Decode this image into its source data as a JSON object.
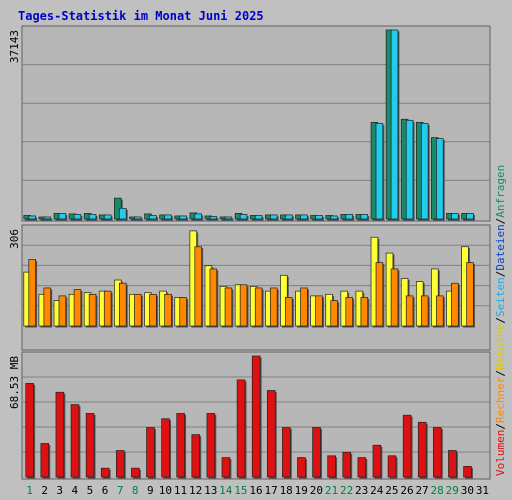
{
  "title": "Tages-Statistik im Monat Juni 2025",
  "colors": {
    "background": "#c0c0c0",
    "plot_bg": "#b7b7b7",
    "grid": "#808080",
    "title": "#0000cc",
    "anfragen": "#1a8a6a",
    "dateien": "#22ccee",
    "seiten": "#22aadd",
    "besuche": "#ffff33",
    "rechner": "#ff8800",
    "volumen": "#dd1111",
    "weekday_label": "#000000",
    "weekend_label": "#008040"
  },
  "right_legend": [
    {
      "text": "Volumen",
      "color": "#dd1111"
    },
    {
      "text": "/",
      "color": "#000000"
    },
    {
      "text": "Rechner",
      "color": "#ff8800"
    },
    {
      "text": "/",
      "color": "#000000"
    },
    {
      "text": "Besuche",
      "color": "#e0c800"
    },
    {
      "text": "/",
      "color": "#000000"
    },
    {
      "text": "Seiten",
      "color": "#22aadd"
    },
    {
      "text": "/",
      "color": "#000000"
    },
    {
      "text": "Dateien",
      "color": "#0044cc"
    },
    {
      "text": "/",
      "color": "#000000"
    },
    {
      "text": "Anfragen",
      "color": "#1a8a6a"
    }
  ],
  "chart_data": {
    "type": "bar",
    "days": [
      "1",
      "2",
      "3",
      "4",
      "5",
      "6",
      "7",
      "8",
      "9",
      "10",
      "11",
      "12",
      "13",
      "14",
      "15",
      "16",
      "17",
      "18",
      "19",
      "20",
      "21",
      "22",
      "23",
      "24",
      "25",
      "26",
      "27",
      "28",
      "29",
      "30",
      "31"
    ],
    "weekend_days": [
      "1",
      "7",
      "8",
      "14",
      "15",
      "21",
      "22",
      "28",
      "29"
    ],
    "panels": [
      {
        "ylabel": "37143",
        "ymax": 37143,
        "series": [
          {
            "name": "Anfragen",
            "values": [
              700,
              400,
              1100,
              1000,
              1100,
              800,
              4100,
              400,
              1000,
              800,
              600,
              1200,
              600,
              400,
              1100,
              700,
              800,
              800,
              800,
              700,
              700,
              900,
              900,
              19000,
              37143,
              19600,
              19000,
              16000,
              1100,
              1100,
              null
            ]
          },
          {
            "name": "Dateien",
            "values": [
              600,
              400,
              1100,
              900,
              900,
              800,
              2100,
              400,
              700,
              800,
              600,
              1000,
              500,
              400,
              900,
              700,
              800,
              800,
              800,
              700,
              600,
              900,
              900,
              18800,
              37143,
              19400,
              18800,
              15800,
              1100,
              1100,
              null
            ]
          }
        ]
      },
      {
        "ylabel": "306",
        "ymax": 306,
        "series": [
          {
            "name": "Besuche",
            "values": [
              170,
              100,
              80,
              100,
              105,
              110,
              145,
              100,
              105,
              110,
              90,
              300,
              190,
              125,
              130,
              125,
              110,
              160,
              110,
              95,
              100,
              110,
              110,
              280,
              230,
              150,
              140,
              180,
              110,
              250,
              null
            ]
          },
          {
            "name": "Rechner",
            "values": [
              210,
              120,
              95,
              115,
              100,
              110,
              135,
              100,
              100,
              100,
              90,
              250,
              180,
              120,
              130,
              120,
              120,
              90,
              120,
              95,
              80,
              90,
              90,
              200,
              180,
              95,
              95,
              95,
              135,
              200,
              null
            ]
          }
        ]
      },
      {
        "ylabel": "68.53 MB",
        "ymax": 68.53,
        "series": [
          {
            "name": "Volumen",
            "values": [
              53,
              19,
              48,
              41,
              36,
              5,
              15,
              5,
              28,
              33,
              36,
              24,
              36,
              11,
              55,
              68.53,
              49,
              28,
              11,
              28,
              12,
              14,
              11,
              18,
              12,
              35,
              31,
              28,
              15,
              6,
              null
            ]
          }
        ]
      }
    ]
  }
}
